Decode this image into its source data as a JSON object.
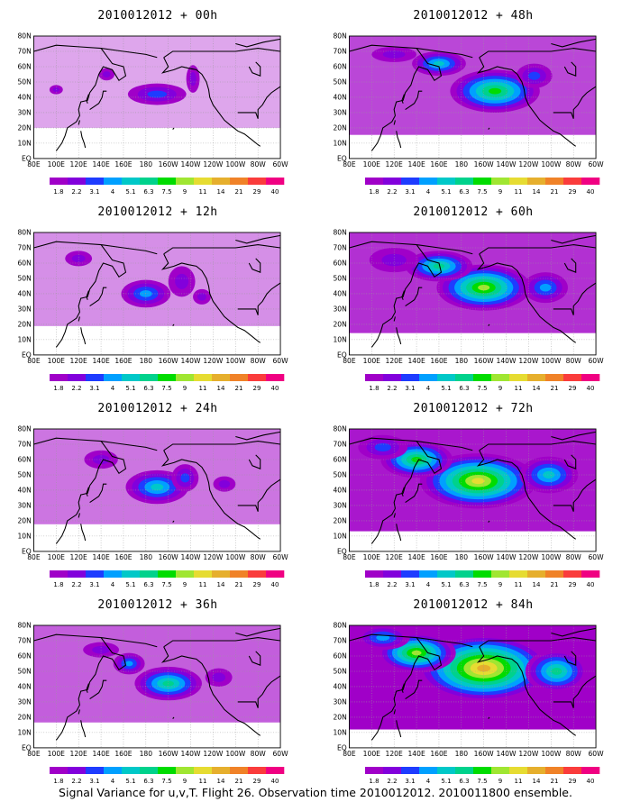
{
  "footer": "Signal Variance for u,v,T. Flight 26. Observation time 2010012012. 2010011800 ensemble.",
  "chart_data": {
    "type": "heatmap",
    "lon_labels": [
      "80E",
      "100E",
      "120E",
      "140E",
      "160E",
      "180",
      "160W",
      "140W",
      "120W",
      "100W",
      "80W",
      "60W"
    ],
    "lat_labels": [
      "80N",
      "70N",
      "60N",
      "50N",
      "40N",
      "30N",
      "20N",
      "10N",
      "EQ"
    ],
    "grid": true,
    "colorbar": {
      "levels": [
        "1.8",
        "2.2",
        "3.1",
        "4",
        "5.1",
        "6.3",
        "7.5",
        "9",
        "11",
        "14",
        "21",
        "29",
        "40"
      ],
      "colors": [
        "#a000c8",
        "#8200dc",
        "#1e3cff",
        "#00a0ff",
        "#00c8c8",
        "#00d28c",
        "#00dc00",
        "#a0e632",
        "#e6dc32",
        "#e6af2d",
        "#f08228",
        "#fa3c3c",
        "#f00082"
      ]
    },
    "panels": [
      {
        "title": "2010012012 + 00h",
        "lead_hours": 0
      },
      {
        "title": "2010012012 + 48h",
        "lead_hours": 48
      },
      {
        "title": "2010012012 + 12h",
        "lead_hours": 12
      },
      {
        "title": "2010012012 + 60h",
        "lead_hours": 60
      },
      {
        "title": "2010012012 + 24h",
        "lead_hours": 24
      },
      {
        "title": "2010012012 + 72h",
        "lead_hours": 72
      },
      {
        "title": "2010012012 + 36h",
        "lead_hours": 36
      },
      {
        "title": "2010012012 + 84h",
        "lead_hours": 84
      }
    ]
  }
}
